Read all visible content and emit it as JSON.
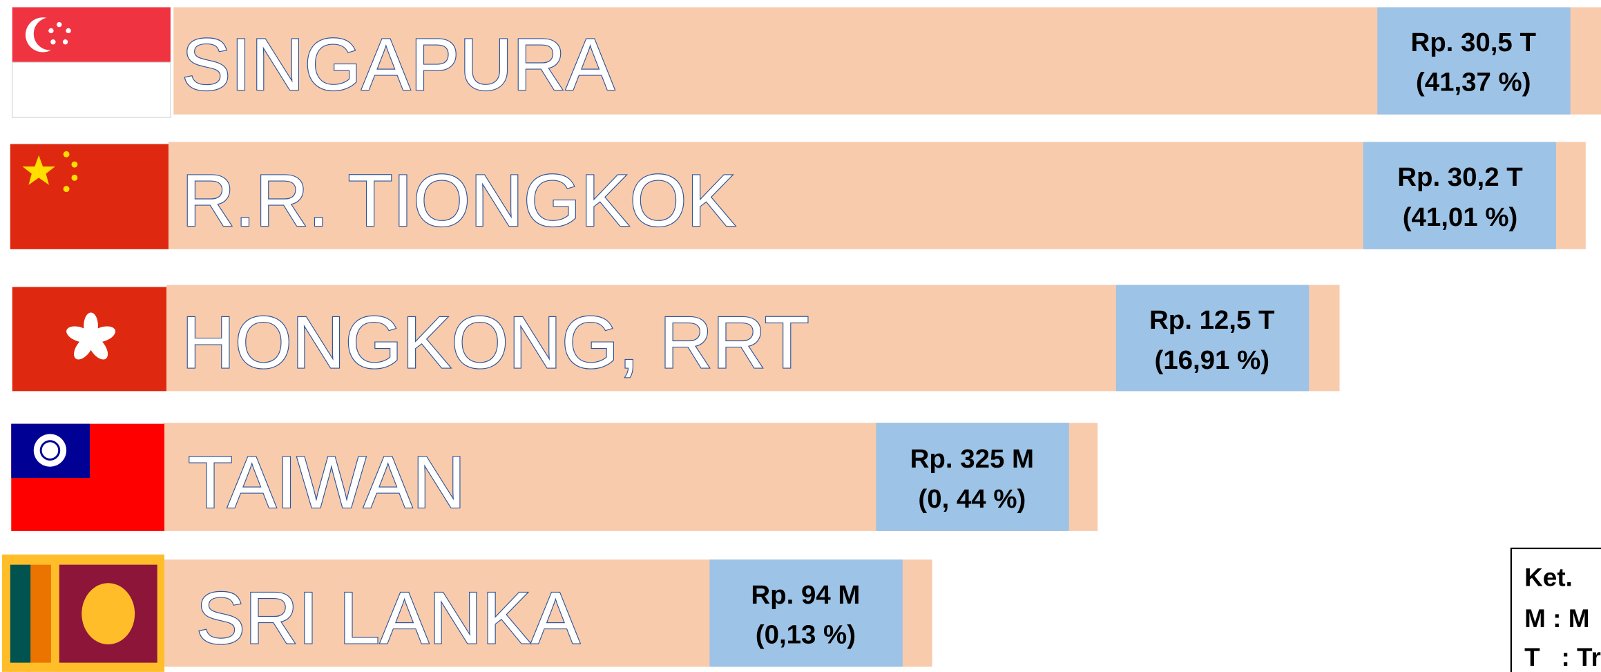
{
  "rows": [
    {
      "country": "SINGAPURA",
      "value": "Rp. 30,5 T",
      "share": "(41,37 %)"
    },
    {
      "country": "R.R. TIONGKOK",
      "value": "Rp. 30,2 T",
      "share": "(41,01 %)"
    },
    {
      "country": "HONGKONG, RRT",
      "value": "Rp. 12,5 T",
      "share": "(16,91 %)"
    },
    {
      "country": "TAIWAN",
      "value": "Rp. 325 M",
      "share": "(0, 44 %)"
    },
    {
      "country": "SRI LANKA",
      "value": "Rp. 94 M",
      "share": "(0,13 %)"
    }
  ],
  "legend": {
    "title": "Ket.",
    "lines": [
      "M : M",
      "T   : Tr"
    ]
  }
}
